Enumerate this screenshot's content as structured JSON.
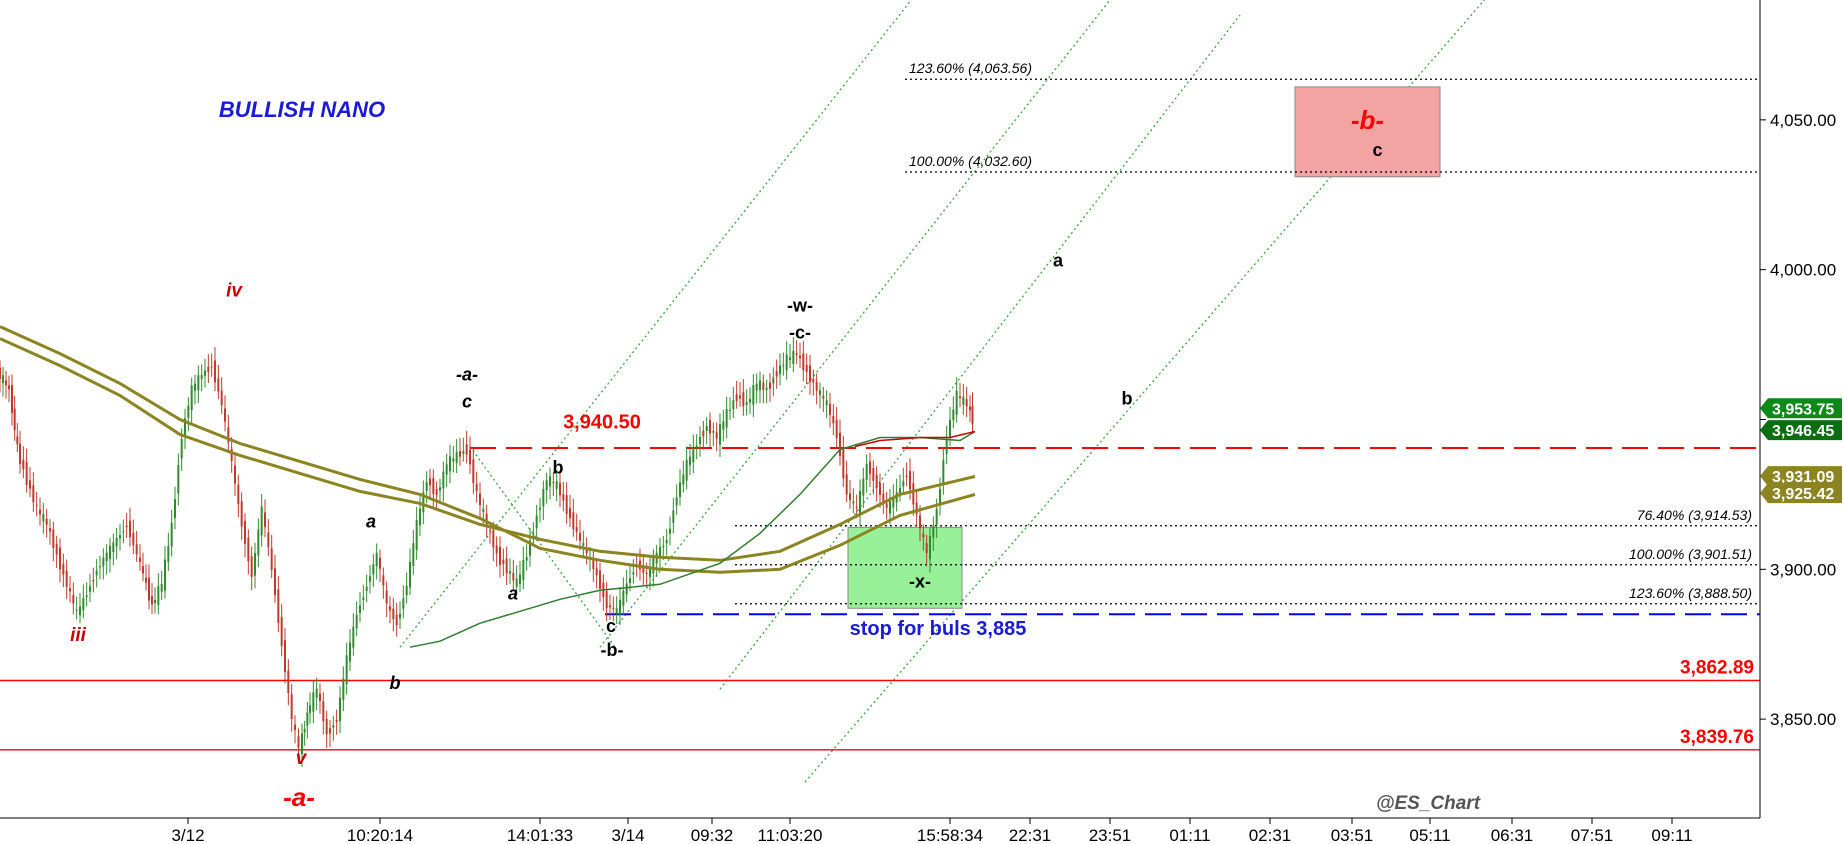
{
  "chart_data": {
    "type": "line",
    "title": "BULLISH NANO",
    "watermark": "@ES_Chart",
    "y_axis": {
      "range": [
        3817,
        4090
      ],
      "ticks": [
        3850,
        3900,
        3950,
        4000,
        4050
      ],
      "tick_labels": [
        "3,850.00",
        "3,900.00",
        "",
        "4,000.00",
        "4,050.00"
      ],
      "position": "right"
    },
    "x_axis": {
      "tick_labels": [
        "3/12",
        "10:20:14",
        "14:01:33",
        "3/14",
        "09:32",
        "11:03:20",
        "15:58:34",
        "22:31",
        "23:51",
        "01:11",
        "02:31",
        "03:51",
        "05:11",
        "06:31",
        "07:51",
        "09:11"
      ],
      "range": [
        0,
        1760
      ],
      "tick_positions": [
        188,
        380,
        540,
        628,
        712,
        790,
        950,
        1030,
        1110,
        1190,
        1270,
        1352,
        1430,
        1512,
        1592,
        1672
      ]
    },
    "price_path": [
      [
        0,
        3966
      ],
      [
        12,
        3960
      ],
      [
        20,
        3940
      ],
      [
        30,
        3930
      ],
      [
        40,
        3920
      ],
      [
        50,
        3915
      ],
      [
        60,
        3905
      ],
      [
        70,
        3895
      ],
      [
        80,
        3885
      ],
      [
        90,
        3892
      ],
      [
        100,
        3900
      ],
      [
        110,
        3905
      ],
      [
        120,
        3910
      ],
      [
        130,
        3915
      ],
      [
        140,
        3905
      ],
      [
        155,
        3888
      ],
      [
        165,
        3895
      ],
      [
        175,
        3915
      ],
      [
        185,
        3945
      ],
      [
        195,
        3960
      ],
      [
        205,
        3965
      ],
      [
        215,
        3968
      ],
      [
        225,
        3955
      ],
      [
        235,
        3935
      ],
      [
        245,
        3915
      ],
      [
        255,
        3898
      ],
      [
        265,
        3920
      ],
      [
        275,
        3900
      ],
      [
        285,
        3875
      ],
      [
        295,
        3850
      ],
      [
        302,
        3840
      ],
      [
        310,
        3852
      ],
      [
        320,
        3860
      ],
      [
        330,
        3845
      ],
      [
        340,
        3850
      ],
      [
        350,
        3870
      ],
      [
        360,
        3885
      ],
      [
        370,
        3895
      ],
      [
        380,
        3905
      ],
      [
        390,
        3888
      ],
      [
        400,
        3882
      ],
      [
        410,
        3895
      ],
      [
        420,
        3915
      ],
      [
        430,
        3930
      ],
      [
        440,
        3925
      ],
      [
        450,
        3935
      ],
      [
        460,
        3938
      ],
      [
        470,
        3940
      ],
      [
        480,
        3925
      ],
      [
        490,
        3915
      ],
      [
        500,
        3905
      ],
      [
        510,
        3900
      ],
      [
        520,
        3895
      ],
      [
        530,
        3905
      ],
      [
        540,
        3918
      ],
      [
        550,
        3930
      ],
      [
        560,
        3928
      ],
      [
        570,
        3920
      ],
      [
        580,
        3912
      ],
      [
        590,
        3905
      ],
      [
        600,
        3898
      ],
      [
        610,
        3888
      ],
      [
        620,
        3886
      ],
      [
        630,
        3895
      ],
      [
        640,
        3902
      ],
      [
        650,
        3898
      ],
      [
        660,
        3905
      ],
      [
        670,
        3910
      ],
      [
        680,
        3925
      ],
      [
        690,
        3935
      ],
      [
        700,
        3942
      ],
      [
        710,
        3948
      ],
      [
        720,
        3944
      ],
      [
        730,
        3952
      ],
      [
        740,
        3958
      ],
      [
        750,
        3955
      ],
      [
        760,
        3962
      ],
      [
        770,
        3960
      ],
      [
        780,
        3966
      ],
      [
        790,
        3970
      ],
      [
        800,
        3972
      ],
      [
        810,
        3966
      ],
      [
        820,
        3960
      ],
      [
        830,
        3955
      ],
      [
        840,
        3945
      ],
      [
        850,
        3925
      ],
      [
        860,
        3920
      ],
      [
        870,
        3935
      ],
      [
        880,
        3928
      ],
      [
        890,
        3920
      ],
      [
        900,
        3925
      ],
      [
        910,
        3932
      ],
      [
        920,
        3918
      ],
      [
        930,
        3905
      ],
      [
        940,
        3920
      ],
      [
        950,
        3945
      ],
      [
        960,
        3958
      ],
      [
        970,
        3955
      ],
      [
        975,
        3950
      ]
    ],
    "series": [
      {
        "name": "",
        "color": "#8b8420",
        "points": [
          [
            0,
            3977
          ],
          [
            60,
            3968
          ],
          [
            120,
            3958
          ],
          [
            180,
            3945
          ],
          [
            240,
            3938
          ],
          [
            300,
            3932
          ],
          [
            360,
            3926
          ],
          [
            420,
            3922
          ],
          [
            480,
            3915
          ],
          [
            540,
            3910
          ],
          [
            600,
            3906
          ],
          [
            660,
            3904
          ],
          [
            720,
            3903
          ],
          [
            780,
            3906
          ],
          [
            840,
            3915
          ],
          [
            900,
            3925
          ],
          [
            975,
            3931
          ]
        ]
      },
      {
        "name": "",
        "color": "#8b8420",
        "points": [
          [
            0,
            3981
          ],
          [
            60,
            3972
          ],
          [
            120,
            3962
          ],
          [
            180,
            3950
          ],
          [
            240,
            3942
          ],
          [
            300,
            3936
          ],
          [
            360,
            3930
          ],
          [
            420,
            3925
          ],
          [
            480,
            3917
          ],
          [
            540,
            3907
          ],
          [
            600,
            3903
          ],
          [
            660,
            3900
          ],
          [
            720,
            3899
          ],
          [
            780,
            3900
          ],
          [
            840,
            3908
          ],
          [
            900,
            3918
          ],
          [
            975,
            3925
          ]
        ]
      },
      {
        "name": "",
        "color": "#2e7d2e",
        "points": [
          [
            410,
            3874
          ],
          [
            440,
            3876
          ],
          [
            480,
            3882
          ],
          [
            520,
            3886
          ],
          [
            560,
            3890
          ],
          [
            600,
            3893
          ],
          [
            660,
            3895
          ],
          [
            720,
            3902
          ],
          [
            760,
            3912
          ],
          [
            800,
            3925
          ],
          [
            840,
            3940
          ],
          [
            880,
            3944
          ],
          [
            920,
            3944
          ],
          [
            960,
            3943
          ],
          [
            975,
            3946
          ]
        ]
      },
      {
        "name": "",
        "color": "#cc0000",
        "points": [
          [
            855,
            3941
          ],
          [
            880,
            3943
          ],
          [
            920,
            3944
          ],
          [
            950,
            3944
          ],
          [
            975,
            3946
          ]
        ]
      }
    ],
    "horizontal_levels": [
      {
        "value": 4063.56,
        "label": "123.60% (4,063.56)",
        "style": "dotted",
        "color": "#000000",
        "x_start": 905
      },
      {
        "value": 4032.6,
        "label": "100.00% (4,032.60)",
        "style": "dotted",
        "color": "#000000",
        "x_start": 905
      },
      {
        "value": 3914.53,
        "label": "76.40% (3,914.53)",
        "style": "dotted",
        "color": "#000000",
        "x_start": 735
      },
      {
        "value": 3901.51,
        "label": "100.00% (3,901.51)",
        "style": "dotted",
        "color": "#000000",
        "x_start": 735
      },
      {
        "value": 3888.5,
        "label": "123.60% (3,888.50)",
        "style": "dotted",
        "color": "#000000",
        "x_start": 735
      },
      {
        "value": 3940.5,
        "label": "3,940.50",
        "style": "dashed",
        "color": "#ff0000",
        "x_start": 470
      },
      {
        "value": 3885,
        "label": "stop for buls 3,885",
        "style": "dashed",
        "color": "#0000ff",
        "x_start": 605
      },
      {
        "value": 3862.89,
        "label": "3,862.89",
        "style": "solid",
        "color": "#ff0000",
        "x_start": 0
      },
      {
        "value": 3839.76,
        "label": "3,839.76",
        "style": "solid",
        "color": "#ff0000",
        "x_start": 0
      }
    ],
    "channel_lines": [
      {
        "from": [
          400,
          3874
        ],
        "to": [
          935,
          4100
        ]
      },
      {
        "from": [
          600,
          3874
        ],
        "to": [
          1110,
          4090
        ]
      },
      {
        "from": [
          720,
          3860
        ],
        "to": [
          1240,
          4085
        ]
      },
      {
        "from": [
          805,
          3829
        ],
        "to": [
          1500,
          4096
        ]
      },
      {
        "from": [
          470,
          3941
        ],
        "to": [
          615,
          3874
        ]
      }
    ],
    "zones": [
      {
        "label": "-b-",
        "sublabel": "c",
        "x_range": [
          1295,
          1440
        ],
        "y_range": [
          4031,
          4061
        ],
        "color": "#f4a3a3"
      },
      {
        "label": "-x-",
        "sublabel": "",
        "x_range": [
          848,
          962
        ],
        "y_range": [
          3887,
          3914
        ],
        "color": "#98f098"
      }
    ],
    "wave_labels": [
      {
        "text": "BULLISH NANO",
        "x": 302,
        "y": 4051,
        "color": "#1a1adb",
        "size": 22,
        "style": "italic"
      },
      {
        "text": "iv",
        "x": 234,
        "y": 3991,
        "color": "#cc0000",
        "size": 19,
        "style": "italic"
      },
      {
        "text": "iii",
        "x": 78,
        "y": 3876,
        "color": "#cc0000",
        "size": 19,
        "style": "italic"
      },
      {
        "text": "v",
        "x": 301,
        "y": 3835,
        "color": "#cc0000",
        "size": 19,
        "style": "italic"
      },
      {
        "text": "-a-",
        "x": 299,
        "y": 3821,
        "color": "#ff0000",
        "size": 26,
        "style": "italic"
      },
      {
        "text": "a",
        "x": 371,
        "y": 3914,
        "color": "#000000",
        "size": 18,
        "style": "italic"
      },
      {
        "text": "b",
        "x": 395,
        "y": 3860,
        "color": "#000000",
        "size": 18,
        "style": "italic"
      },
      {
        "text": "-a-",
        "x": 467,
        "y": 3963,
        "color": "#000000",
        "size": 18,
        "style": "italic"
      },
      {
        "text": "c",
        "x": 467,
        "y": 3954,
        "color": "#000000",
        "size": 18,
        "style": "italic"
      },
      {
        "text": "3,940.50",
        "x": 602,
        "y": 3947,
        "color": "#ff0000",
        "size": 20,
        "style": "normal"
      },
      {
        "text": "b",
        "x": 558,
        "y": 3932,
        "color": "#000000",
        "size": 18,
        "style": "normal"
      },
      {
        "text": "a",
        "x": 513,
        "y": 3890,
        "color": "#000000",
        "size": 18,
        "style": "italic"
      },
      {
        "text": "c",
        "x": 611,
        "y": 3879,
        "color": "#000000",
        "size": 18,
        "style": "normal"
      },
      {
        "text": "-b-",
        "x": 612,
        "y": 3871,
        "color": "#000000",
        "size": 18,
        "style": "normal"
      },
      {
        "text": "-w-",
        "x": 800,
        "y": 3986,
        "color": "#000000",
        "size": 18,
        "style": "normal"
      },
      {
        "text": "-c-",
        "x": 800,
        "y": 3977,
        "color": "#000000",
        "size": 18,
        "style": "normal"
      },
      {
        "text": "a",
        "x": 1058,
        "y": 4001,
        "color": "#000000",
        "size": 18,
        "style": "normal"
      },
      {
        "text": "b",
        "x": 1127,
        "y": 3955,
        "color": "#000000",
        "size": 18,
        "style": "normal"
      },
      {
        "text": "stop for buls 3,885",
        "x": 938,
        "y": 3878,
        "color": "#1a1adb",
        "size": 20,
        "style": "normal"
      },
      {
        "text": "@ES_Chart",
        "x": 1428,
        "y": 3820,
        "color": "#555555",
        "size": 19,
        "style": "italic"
      }
    ],
    "price_tags": [
      {
        "value": 3953.75,
        "label": "3,953.75",
        "color": "#0b8a17"
      },
      {
        "value": 3946.45,
        "label": "3,946.45",
        "color": "#0b6e10"
      },
      {
        "value": 3931.09,
        "label": "3,931.09",
        "color": "#8b8420"
      },
      {
        "value": 3925.42,
        "label": "3,925.42",
        "color": "#8b8420"
      }
    ],
    "level_labels_right": [
      {
        "value": 3862.89,
        "label": "3,862.89",
        "color": "#ff0000"
      },
      {
        "value": 3839.76,
        "label": "3,839.76",
        "color": "#ff0000"
      }
    ],
    "colors": {
      "candle_up": "#2e8b2e",
      "candle_down": "#c0392b",
      "background": "#ffffff",
      "axis": "#000000"
    }
  }
}
